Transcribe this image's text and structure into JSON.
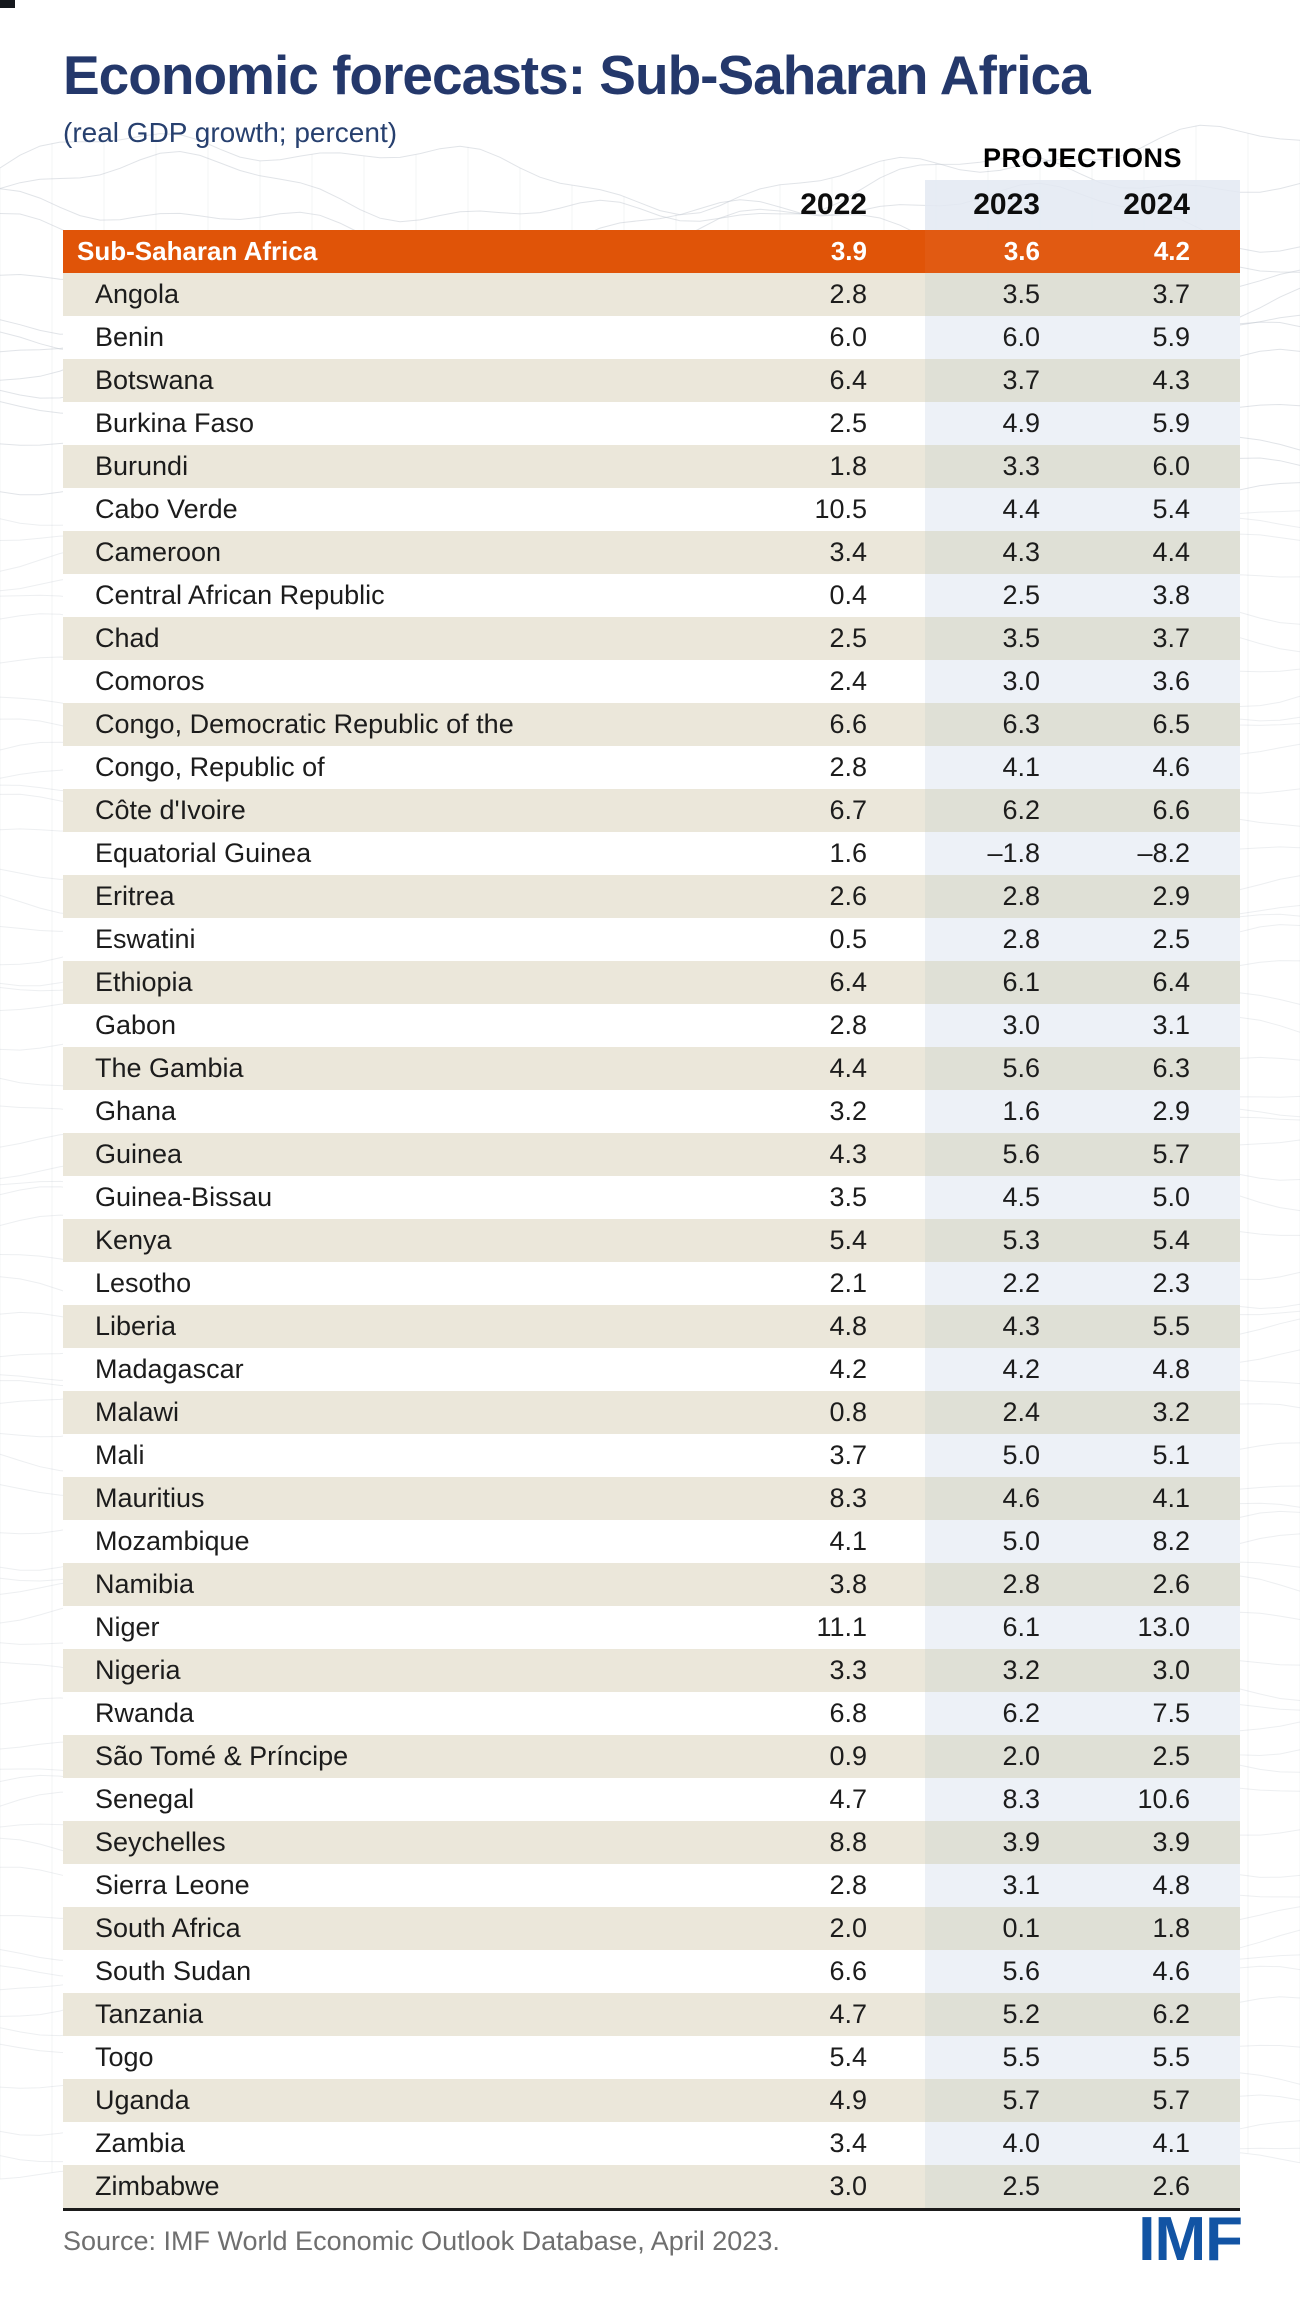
{
  "chart_data": {
    "type": "table",
    "title": "Economic forecasts: Sub-Saharan Africa",
    "subtitle": "(real GDP growth; percent)",
    "unit": "percent (real GDP growth)",
    "projections_label": "PROJECTIONS",
    "columns": [
      "2022",
      "2023",
      "2024"
    ],
    "projection_columns": [
      "2023",
      "2024"
    ],
    "total_row": {
      "label": "Sub-Saharan Africa",
      "values": [
        "3.9",
        "3.6",
        "4.2"
      ]
    },
    "rows": [
      {
        "country": "Angola",
        "values": [
          "2.8",
          "3.5",
          "3.7"
        ]
      },
      {
        "country": "Benin",
        "values": [
          "6.0",
          "6.0",
          "5.9"
        ]
      },
      {
        "country": "Botswana",
        "values": [
          "6.4",
          "3.7",
          "4.3"
        ]
      },
      {
        "country": "Burkina Faso",
        "values": [
          "2.5",
          "4.9",
          "5.9"
        ]
      },
      {
        "country": "Burundi",
        "values": [
          "1.8",
          "3.3",
          "6.0"
        ]
      },
      {
        "country": "Cabo Verde",
        "values": [
          "10.5",
          "4.4",
          "5.4"
        ]
      },
      {
        "country": "Cameroon",
        "values": [
          "3.4",
          "4.3",
          "4.4"
        ]
      },
      {
        "country": "Central African Republic",
        "values": [
          "0.4",
          "2.5",
          "3.8"
        ]
      },
      {
        "country": "Chad",
        "values": [
          "2.5",
          "3.5",
          "3.7"
        ]
      },
      {
        "country": "Comoros",
        "values": [
          "2.4",
          "3.0",
          "3.6"
        ]
      },
      {
        "country": "Congo, Democratic Republic of the",
        "values": [
          "6.6",
          "6.3",
          "6.5"
        ]
      },
      {
        "country": "Congo, Republic of",
        "values": [
          "2.8",
          "4.1",
          "4.6"
        ]
      },
      {
        "country": "Côte d'Ivoire",
        "values": [
          "6.7",
          "6.2",
          "6.6"
        ]
      },
      {
        "country": "Equatorial Guinea",
        "values": [
          "1.6",
          "–1.8",
          "–8.2"
        ]
      },
      {
        "country": "Eritrea",
        "values": [
          "2.6",
          "2.8",
          "2.9"
        ]
      },
      {
        "country": "Eswatini",
        "values": [
          "0.5",
          "2.8",
          "2.5"
        ]
      },
      {
        "country": "Ethiopia",
        "values": [
          "6.4",
          "6.1",
          "6.4"
        ]
      },
      {
        "country": "Gabon",
        "values": [
          "2.8",
          "3.0",
          "3.1"
        ]
      },
      {
        "country": "The Gambia",
        "values": [
          "4.4",
          "5.6",
          "6.3"
        ]
      },
      {
        "country": "Ghana",
        "values": [
          "3.2",
          "1.6",
          "2.9"
        ]
      },
      {
        "country": "Guinea",
        "values": [
          "4.3",
          "5.6",
          "5.7"
        ]
      },
      {
        "country": "Guinea-Bissau",
        "values": [
          "3.5",
          "4.5",
          "5.0"
        ]
      },
      {
        "country": "Kenya",
        "values": [
          "5.4",
          "5.3",
          "5.4"
        ]
      },
      {
        "country": "Lesotho",
        "values": [
          "2.1",
          "2.2",
          "2.3"
        ]
      },
      {
        "country": "Liberia",
        "values": [
          "4.8",
          "4.3",
          "5.5"
        ]
      },
      {
        "country": "Madagascar",
        "values": [
          "4.2",
          "4.2",
          "4.8"
        ]
      },
      {
        "country": "Malawi",
        "values": [
          "0.8",
          "2.4",
          "3.2"
        ]
      },
      {
        "country": "Mali",
        "values": [
          "3.7",
          "5.0",
          "5.1"
        ]
      },
      {
        "country": "Mauritius",
        "values": [
          "8.3",
          "4.6",
          "4.1"
        ]
      },
      {
        "country": "Mozambique",
        "values": [
          "4.1",
          "5.0",
          "8.2"
        ]
      },
      {
        "country": "Namibia",
        "values": [
          "3.8",
          "2.8",
          "2.6"
        ]
      },
      {
        "country": "Niger",
        "values": [
          "11.1",
          "6.1",
          "13.0"
        ]
      },
      {
        "country": "Nigeria",
        "values": [
          "3.3",
          "3.2",
          "3.0"
        ]
      },
      {
        "country": "Rwanda",
        "values": [
          "6.8",
          "6.2",
          "7.5"
        ]
      },
      {
        "country": "São Tomé & Príncipe",
        "values": [
          "0.9",
          "2.0",
          "2.5"
        ]
      },
      {
        "country": "Senegal",
        "values": [
          "4.7",
          "8.3",
          "10.6"
        ]
      },
      {
        "country": "Seychelles",
        "values": [
          "8.8",
          "3.9",
          "3.9"
        ]
      },
      {
        "country": "Sierra Leone",
        "values": [
          "2.8",
          "3.1",
          "4.8"
        ]
      },
      {
        "country": "South Africa",
        "values": [
          "2.0",
          "0.1",
          "1.8"
        ]
      },
      {
        "country": "South Sudan",
        "values": [
          "6.6",
          "5.6",
          "4.6"
        ]
      },
      {
        "country": "Tanzania",
        "values": [
          "4.7",
          "5.2",
          "6.2"
        ]
      },
      {
        "country": "Togo",
        "values": [
          "5.4",
          "5.5",
          "5.5"
        ]
      },
      {
        "country": "Uganda",
        "values": [
          "4.9",
          "5.7",
          "5.7"
        ]
      },
      {
        "country": "Zambia",
        "values": [
          "3.4",
          "4.0",
          "4.1"
        ]
      },
      {
        "country": "Zimbabwe",
        "values": [
          "3.0",
          "2.5",
          "2.6"
        ]
      }
    ]
  },
  "footer": {
    "source": "Source: IMF World Economic Outlook Database, April 2023.",
    "logo": "IMF"
  },
  "colors": {
    "accent_orange": "#E05408",
    "title_navy": "#24386B",
    "row_beige": "#EBE7DA",
    "projection_band_on_white": "#EDF1F7",
    "projection_band_on_beige": "#DFE0D6",
    "header_band_blue": "#E3E9F2",
    "imf_blue": "#1254A4",
    "source_gray": "#6F6F6F",
    "table_border_dark": "#1B1B1B"
  }
}
